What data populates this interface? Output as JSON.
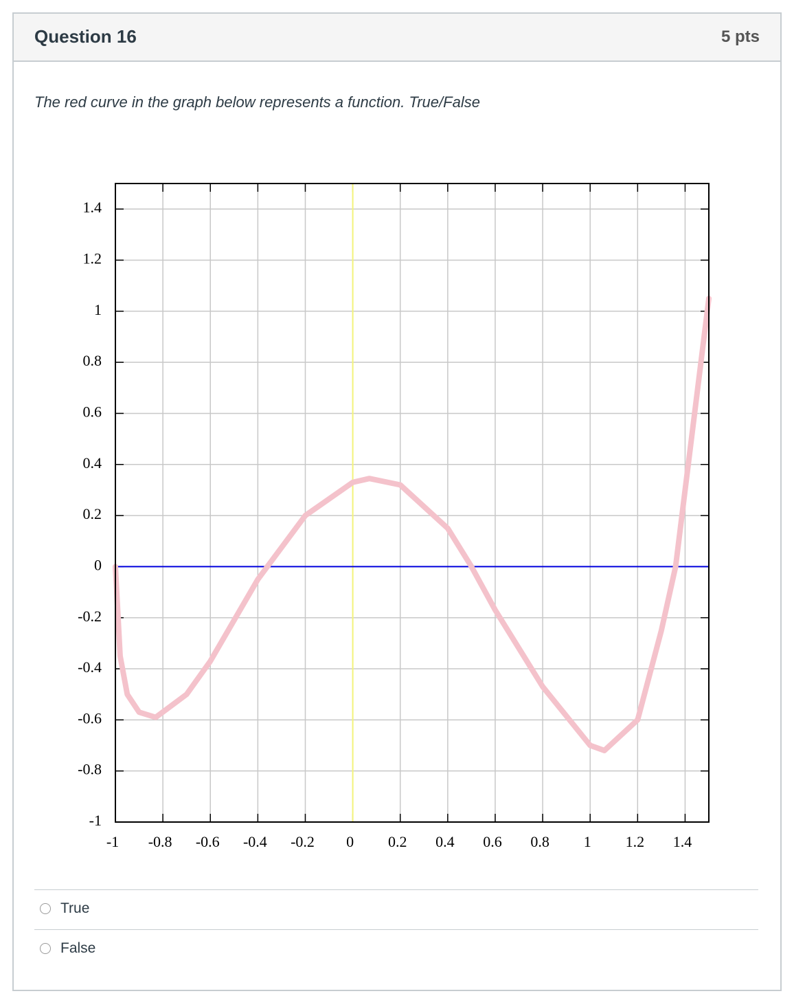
{
  "header": {
    "title": "Question 16",
    "points": "5 pts"
  },
  "question": "The red curve in the graph below represents a function. True/False",
  "chart_data": {
    "type": "line",
    "x": [
      -1,
      -0.98,
      -0.95,
      -0.9,
      -0.83,
      -0.7,
      -0.6,
      -0.4,
      -0.36,
      -0.2,
      0,
      0.07,
      0.2,
      0.4,
      0.5,
      0.6,
      0.8,
      1.0,
      1.06,
      1.2,
      1.3,
      1.36,
      1.4,
      1.5
    ],
    "series": [
      {
        "color": "#f4c2cb",
        "values": [
          0,
          -0.35,
          -0.5,
          -0.57,
          -0.59,
          -0.5,
          -0.37,
          -0.05,
          0,
          0.2,
          0.33,
          0.345,
          0.32,
          0.15,
          0,
          -0.17,
          -0.47,
          -0.7,
          -0.72,
          -0.6,
          -0.25,
          0,
          0.3,
          1.05
        ]
      }
    ],
    "xlim": [
      -1,
      1.5
    ],
    "ylim": [
      -1,
      1.5
    ],
    "xticks": [
      -1,
      -0.8,
      -0.6,
      -0.4,
      -0.2,
      0,
      0.2,
      0.4,
      0.6,
      0.8,
      1,
      1.2,
      1.4
    ],
    "yticks": [
      -1,
      -0.8,
      -0.6,
      -0.4,
      -0.2,
      0,
      0.2,
      0.4,
      0.6,
      0.8,
      1,
      1.2,
      1.4
    ],
    "grid": true,
    "x_zero_line_color": "#0000dd",
    "y_zero_line_color": "#f4f47a"
  },
  "options": [
    "True",
    "False"
  ]
}
